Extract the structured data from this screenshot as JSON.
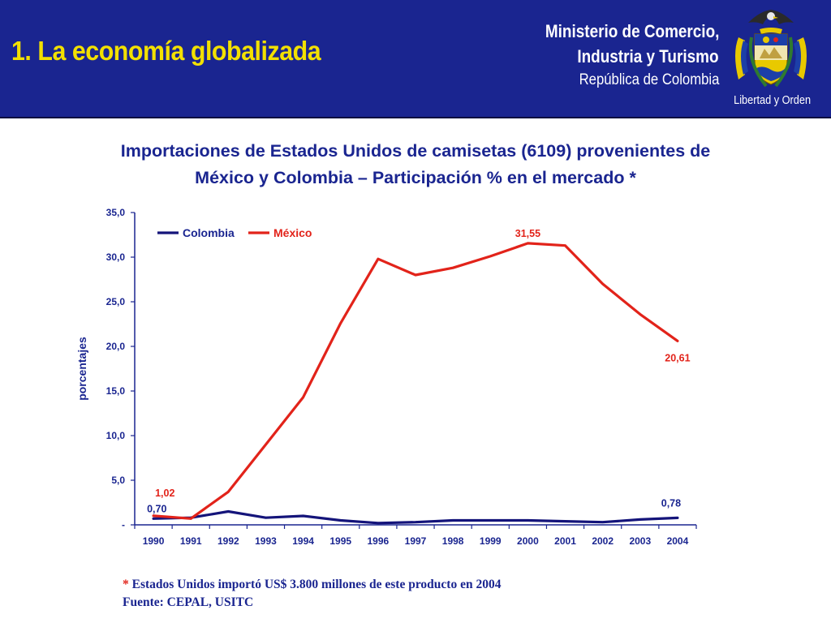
{
  "header": {
    "slide_title": "1. La economía globalizada",
    "ministry_line1": "Ministerio de Comercio,",
    "ministry_line2": "Industria y Turismo",
    "ministry_line3": "República de Colombia",
    "motto": "Libertad y Orden",
    "emblem": "coat-of-arms-icon",
    "background_color": "#1a2590",
    "title_color": "#f2e000"
  },
  "chart_title_line1": "Importaciones de Estados Unidos de camisetas (6109) provenientes de",
  "chart_title_line2": "México y Colombia – Participación % en el mercado *",
  "chart_data": {
    "type": "line",
    "ylabel": "porcentajes",
    "xlabel": "",
    "ylim": [
      0,
      35
    ],
    "y_ticks": [
      "-",
      "5,0",
      "10,0",
      "15,0",
      "20,0",
      "25,0",
      "30,0",
      "35,0"
    ],
    "categories": [
      "1990",
      "1991",
      "1992",
      "1993",
      "1994",
      "1995",
      "1996",
      "1997",
      "1998",
      "1999",
      "2000",
      "2001",
      "2002",
      "2003",
      "2004"
    ],
    "legend_position": "top-left",
    "grid": false,
    "series": [
      {
        "name": "Colombia",
        "color": "#14147a",
        "values": [
          0.7,
          0.8,
          1.5,
          0.8,
          1.0,
          0.5,
          0.2,
          0.3,
          0.5,
          0.5,
          0.5,
          0.4,
          0.3,
          0.6,
          0.78
        ]
      },
      {
        "name": "México",
        "color": "#e2231a",
        "values": [
          1.02,
          0.7,
          3.7,
          9.0,
          14.3,
          22.6,
          29.8,
          28.0,
          28.8,
          30.1,
          31.55,
          31.3,
          27.0,
          23.6,
          20.61
        ]
      }
    ],
    "annotations": [
      {
        "series": 0,
        "index": 0,
        "text": "0,70",
        "color": "#1a2590"
      },
      {
        "series": 0,
        "index": 14,
        "text": "0,78",
        "color": "#1a2590"
      },
      {
        "series": 1,
        "index": 0,
        "text": "1,02",
        "color": "#e2231a"
      },
      {
        "series": 1,
        "index": 10,
        "text": "31,55",
        "color": "#e2231a"
      },
      {
        "series": 1,
        "index": 14,
        "text": "20,61",
        "color": "#e2231a"
      }
    ]
  },
  "footnote": {
    "star": "*",
    "line1": "Estados Unidos importó US$ 3.800 millones de este producto en 2004",
    "line2": "Fuente: CEPAL, USITC"
  }
}
